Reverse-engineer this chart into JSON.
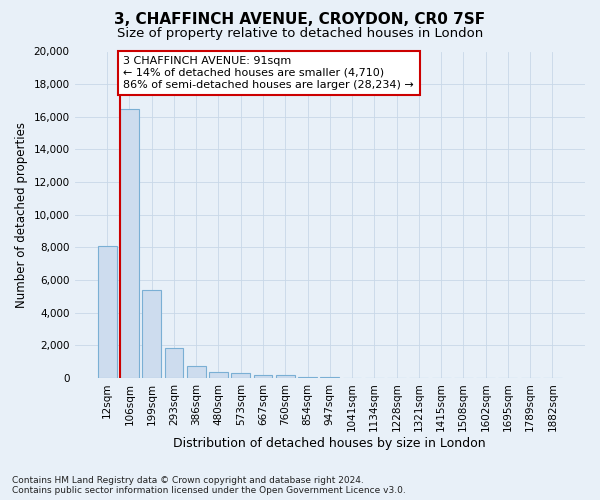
{
  "title": "3, CHAFFINCH AVENUE, CROYDON, CR0 7SF",
  "subtitle": "Size of property relative to detached houses in London",
  "xlabel": "Distribution of detached houses by size in London",
  "ylabel": "Number of detached properties",
  "categories": [
    "12sqm",
    "106sqm",
    "199sqm",
    "293sqm",
    "386sqm",
    "480sqm",
    "573sqm",
    "667sqm",
    "760sqm",
    "854sqm",
    "947sqm",
    "1041sqm",
    "1134sqm",
    "1228sqm",
    "1321sqm",
    "1415sqm",
    "1508sqm",
    "1602sqm",
    "1695sqm",
    "1789sqm",
    "1882sqm"
  ],
  "values": [
    8100,
    16500,
    5400,
    1850,
    750,
    350,
    275,
    200,
    160,
    50,
    30,
    20,
    15,
    10,
    8,
    6,
    5,
    4,
    3,
    2,
    2
  ],
  "bar_color": "#cddcee",
  "bar_edge_color": "#7aafd4",
  "vline_color": "#cc0000",
  "annotation_line1": "3 CHAFFINCH AVENUE: 91sqm",
  "annotation_line2": "← 14% of detached houses are smaller (4,710)",
  "annotation_line3": "86% of semi-detached houses are larger (28,234) →",
  "annotation_box_color": "#cc0000",
  "ylim": [
    0,
    20000
  ],
  "yticks": [
    0,
    2000,
    4000,
    6000,
    8000,
    10000,
    12000,
    14000,
    16000,
    18000,
    20000
  ],
  "grid_color": "#c8d8e8",
  "background_color": "#e8f0f8",
  "plot_bg_color": "#e8f0f8",
  "footnote": "Contains HM Land Registry data © Crown copyright and database right 2024.\nContains public sector information licensed under the Open Government Licence v3.0.",
  "title_fontsize": 11,
  "subtitle_fontsize": 9.5,
  "xlabel_fontsize": 9,
  "ylabel_fontsize": 8.5,
  "tick_fontsize": 7.5,
  "annotation_fontsize": 8,
  "footnote_fontsize": 6.5
}
